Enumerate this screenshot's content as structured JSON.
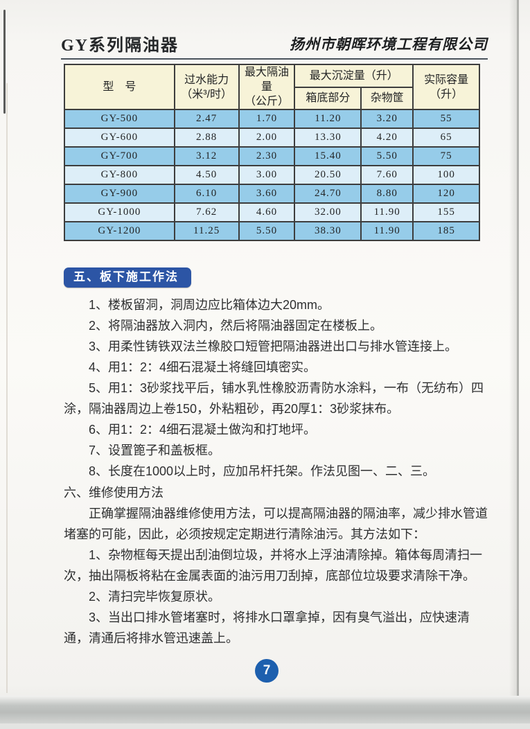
{
  "colors": {
    "accent_blue": "#2c55a5",
    "page_circle_blue": "#1d5fae",
    "table_header_bg": "#f7f3d8",
    "table_row_blue": "#96cce9",
    "table_row_light_blue": "#ddeef8",
    "table_border": "#3d3d3d",
    "header_rule": "#4b545c"
  },
  "header": {
    "title": "GY系列隔油器",
    "company": "扬州市朝晖环境工程有限公司"
  },
  "table": {
    "header": {
      "model": "型　号",
      "flow": "过水能力\n（米³/时）",
      "max_oil": "最大隔油量\n（公斤）",
      "max_sediment": "最大沉淀量（升）",
      "box_bottom": "箱底部分",
      "debris_basket": "杂物筐",
      "actual_capacity": "实际容量\n（升）"
    },
    "rows": [
      [
        "GY-500",
        "2.47",
        "1.70",
        "11.20",
        "3.20",
        "55"
      ],
      [
        "GY-600",
        "2.88",
        "2.00",
        "13.30",
        "4.20",
        "65"
      ],
      [
        "GY-700",
        "3.12",
        "2.30",
        "15.40",
        "5.50",
        "75"
      ],
      [
        "GY-800",
        "4.50",
        "3.00",
        "20.50",
        "7.60",
        "100"
      ],
      [
        "GY-900",
        "6.10",
        "3.60",
        "24.70",
        "8.80",
        "120"
      ],
      [
        "GY-1000",
        "7.62",
        "4.60",
        "32.00",
        "11.90",
        "155"
      ],
      [
        "GY-1200",
        "11.25",
        "5.50",
        "38.30",
        "11.90",
        "185"
      ]
    ]
  },
  "section5": {
    "title": "五、板下施工作法",
    "items": [
      "1、楼板留洞，洞周边应比箱体边大20mm。",
      "2、将隔油器放入洞内，然后将隔油器固定在楼板上。",
      "3、用柔性铸铁双法兰橡胶口短管把隔油器进出口与排水管连接上。",
      "4、用1：2：4细石混凝土将缝回填密实。",
      "5、用1：3砂浆找平后，铺水乳性橡胶沥青防水涂料，一布（无纺布）四涂，隔油器周边上卷150，外粘粗砂，再20厚1：3砂浆抹布。",
      "6、用1：2：4细石混凝土做沟和打地坪。",
      "7、设置篦子和盖板框。",
      "8、长度在1000以上时，应加吊杆托架。作法见图一、二、三。"
    ]
  },
  "section6": {
    "title": "六、维修使用方法",
    "intro": "正确掌握隔油器维修使用方法，可以提高隔油器的隔油率，减少排水管道堵塞的可能，因此，必须按规定定期进行清除油污。其方法如下：",
    "items": [
      "1、杂物框每天提出刮油倒垃圾，并将水上浮油清除掉。箱体每周清扫一次，抽出隔板将粘在金属表面的油污用刀刮掉，底部位垃圾要求清除干净。",
      "2、清扫完毕恢复原状。",
      "3、当出口排水管堵塞时，将排水口罩拿掉，因有臭气溢出，应快速清通，清通后将排水管迅速盖上。"
    ]
  },
  "footer": {
    "page_number": "7"
  }
}
